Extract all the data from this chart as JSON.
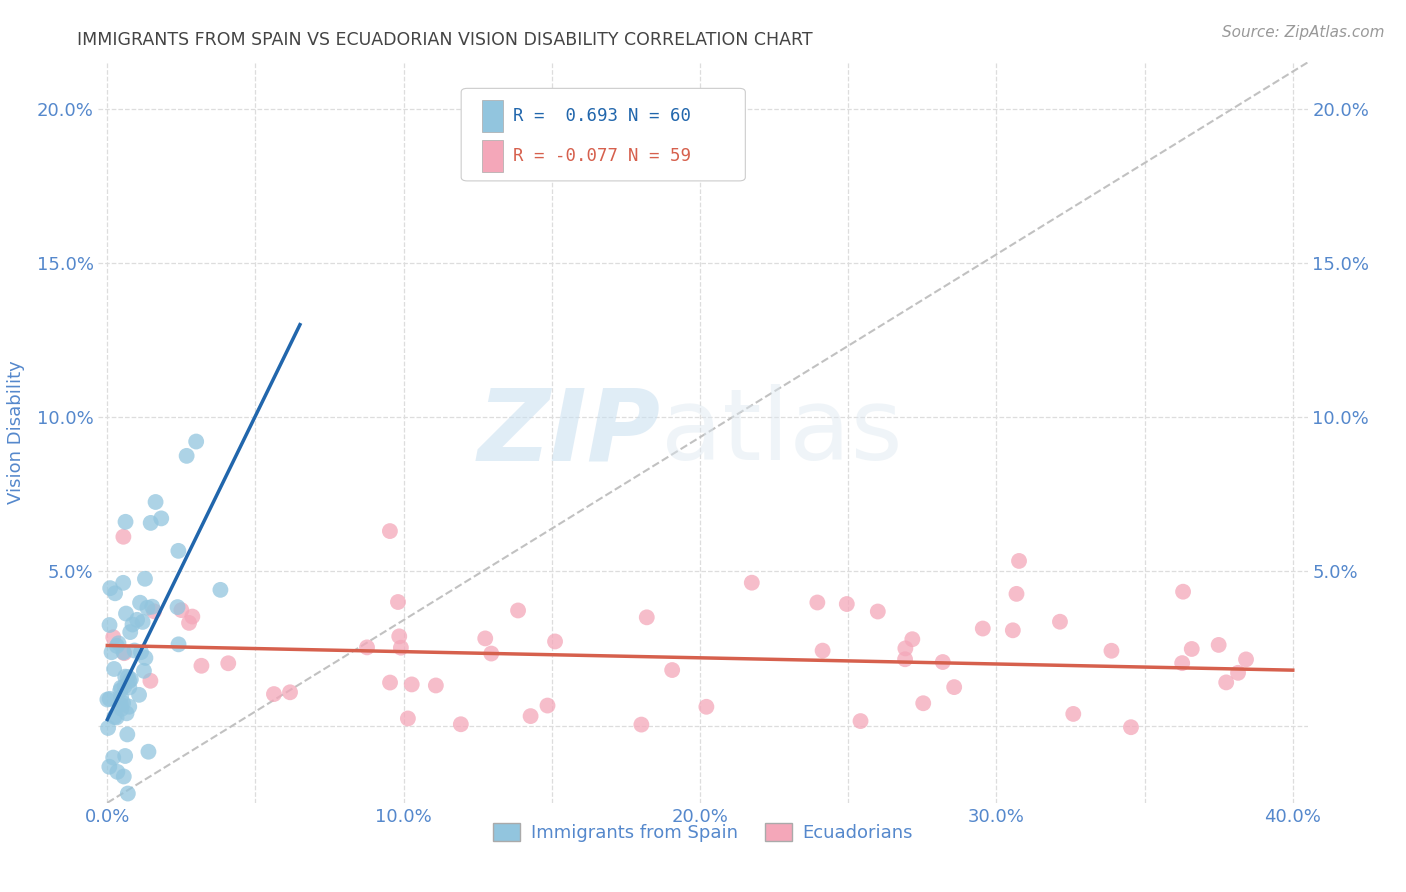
{
  "title": "IMMIGRANTS FROM SPAIN VS ECUADORIAN VISION DISABILITY CORRELATION CHART",
  "source": "Source: ZipAtlas.com",
  "ylabel": "Vision Disability",
  "xlim": [
    -0.003,
    0.405
  ],
  "ylim": [
    -0.025,
    0.215
  ],
  "xticks": [
    0.0,
    0.05,
    0.1,
    0.15,
    0.2,
    0.25,
    0.3,
    0.35,
    0.4
  ],
  "xtick_labels": [
    "0.0%",
    "",
    "10.0%",
    "",
    "20.0%",
    "",
    "30.0%",
    "",
    "40.0%"
  ],
  "yticks": [
    0.0,
    0.05,
    0.1,
    0.15,
    0.2
  ],
  "ytick_labels_left": [
    "",
    "5.0%",
    "10.0%",
    "15.0%",
    "20.0%"
  ],
  "ytick_labels_right": [
    "",
    "5.0%",
    "10.0%",
    "15.0%",
    "20.0%"
  ],
  "watermark_zip": "ZIP",
  "watermark_atlas": "atlas",
  "legend_labels": [
    "Immigrants from Spain",
    "Ecuadorians"
  ],
  "blue_scatter_color": "#92c5de",
  "pink_scatter_color": "#f4a7b9",
  "blue_line_color": "#2166ac",
  "pink_line_color": "#d6604d",
  "diagonal_color": "#bbbbbb",
  "background_color": "#ffffff",
  "grid_color": "#dddddd",
  "title_color": "#444444",
  "axis_color": "#5588cc",
  "legend_r1": "R =  0.693",
  "legend_n1": "N = 60",
  "legend_r2": "R = -0.077",
  "legend_n2": "N = 59"
}
